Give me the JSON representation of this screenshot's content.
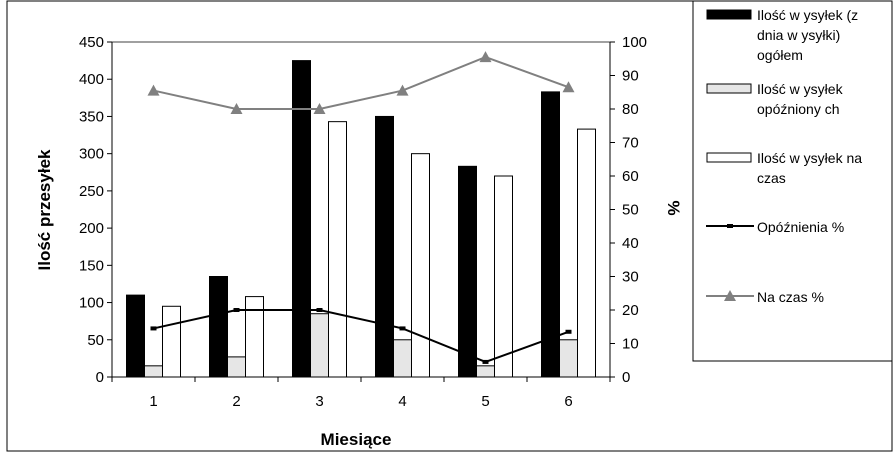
{
  "chart_data": {
    "type": "bar",
    "xlabel": "Miesiące",
    "ylabel": "Ilość  przesyłek",
    "y2label": "%",
    "categories": [
      "1",
      "2",
      "3",
      "4",
      "5",
      "6"
    ],
    "ylim": [
      0,
      450
    ],
    "y2lim": [
      0,
      100
    ],
    "yticks": [
      "0",
      "50",
      "100",
      "150",
      "200",
      "250",
      "300",
      "350",
      "400",
      "450"
    ],
    "y2ticks": [
      "0",
      "10",
      "20",
      "30",
      "40",
      "50",
      "60",
      "70",
      "80",
      "90",
      "100"
    ],
    "grid": false,
    "legend_position": "right",
    "series": [
      {
        "name": "Ilość w ysyłek (z dnia w ysyłki) ogółem",
        "kind": "bar",
        "axis": "left",
        "color": "#000000",
        "legend_lines": [
          "Ilość w ysyłek (z",
          "dnia w ysyłki)",
          "ogółem"
        ],
        "values": [
          110,
          135,
          425,
          350,
          283,
          383
        ]
      },
      {
        "name": "Ilość w ysyłek opóźnionych",
        "kind": "bar",
        "axis": "left",
        "color": "#e6e6e6",
        "legend_lines": [
          "Ilość w ysyłek",
          "opóźniony ch"
        ],
        "values": [
          15,
          27,
          85,
          50,
          15,
          50
        ]
      },
      {
        "name": "Ilość w ysyłek na czas",
        "kind": "bar",
        "axis": "left",
        "color": "#ffffff",
        "legend_lines": [
          "Ilość w ysyłek na",
          "czas"
        ],
        "values": [
          95,
          108,
          343,
          300,
          270,
          333
        ]
      },
      {
        "name": "Opóźnienia %",
        "kind": "line",
        "axis": "right",
        "color": "#000000",
        "marker": "square",
        "legend_lines": [
          "Opóźnienia %"
        ],
        "values": [
          14.5,
          20,
          20,
          14.5,
          4.5,
          13.5
        ]
      },
      {
        "name": "Na czas %",
        "kind": "line",
        "axis": "right",
        "color": "#808080",
        "marker": "triangle",
        "legend_lines": [
          "Na czas %"
        ],
        "values": [
          85.5,
          80,
          80,
          85.5,
          95.5,
          86.5
        ]
      }
    ]
  }
}
